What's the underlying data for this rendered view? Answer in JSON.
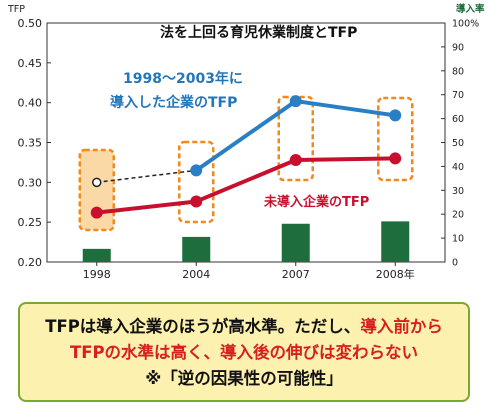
{
  "chart_data": {
    "type": "line",
    "title": "法を上回る育児休業制度とTFP",
    "categories": [
      "1998",
      "2004",
      "2007",
      "2008年"
    ],
    "y_left": {
      "label": "TFP",
      "ylim": [
        0.2,
        0.5
      ],
      "ticks": [
        "0.20",
        "0.25",
        "0.30",
        "0.35",
        "0.40",
        "0.45",
        "0.50"
      ]
    },
    "y_right": {
      "label": "導入率",
      "ylim": [
        0,
        100
      ],
      "ticks": [
        "0",
        "10",
        "20",
        "30",
        "40",
        "50",
        "60",
        "70",
        "80",
        "90",
        "100%"
      ]
    },
    "series": [
      {
        "kind": "line",
        "color": "#2a7fc4",
        "values": [
          0.3,
          0.315,
          0.402,
          0.384
        ],
        "first_point_hollow": true,
        "first_segment_dashed": true
      },
      {
        "kind": "line",
        "color": "#c8102e",
        "values": [
          0.262,
          0.276,
          0.328,
          0.33
        ]
      },
      {
        "kind": "bar",
        "axis": "right",
        "color": "#1d6e3c",
        "values": [
          5.5,
          10.5,
          16,
          17
        ]
      }
    ],
    "annotations": {
      "blue": [
        "1998～2003年に",
        "導入した企業のTFP"
      ],
      "red": "未導入企業のTFP"
    }
  },
  "summary": {
    "line1": "TFPは導入企業のほうが高水準。ただし、",
    "line1_red": "導入前から",
    "line2_red": "TFPの水準は高く、導入後の伸びは変わらない",
    "line3": "※「逆の因果性の可能性」"
  }
}
